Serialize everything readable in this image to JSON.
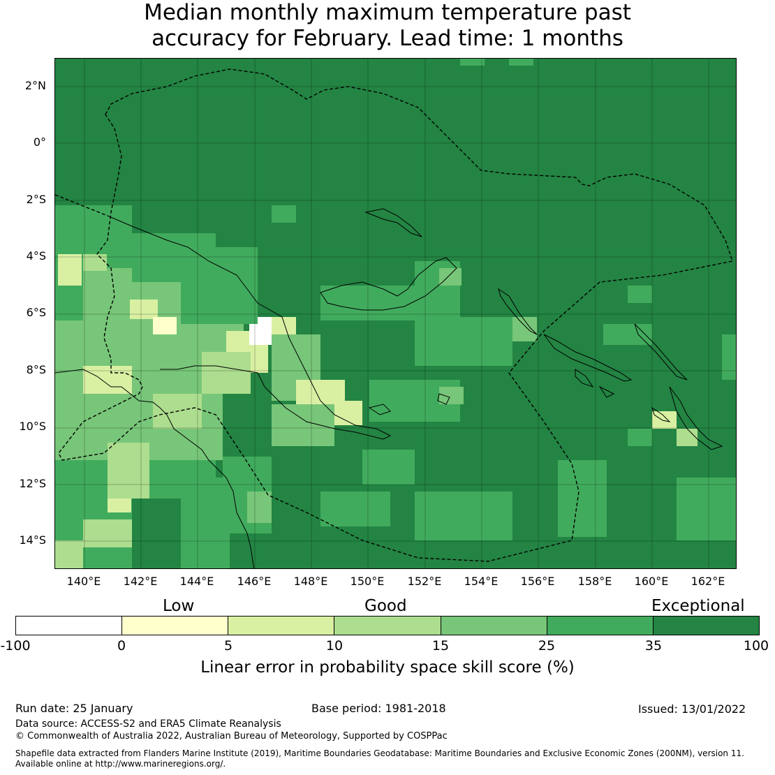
{
  "title_line1": "Median monthly maximum temperature past",
  "title_line2": "accuracy for February. Lead time: 1 months",
  "lat_labels": [
    "2°N",
    "0°",
    "2°S",
    "4°S",
    "6°S",
    "8°S",
    "10°S",
    "12°S",
    "14°S"
  ],
  "lon_labels": [
    "140°E",
    "142°E",
    "144°E",
    "146°E",
    "148°E",
    "150°E",
    "152°E",
    "154°E",
    "156°E",
    "158°E",
    "160°E",
    "162°E"
  ],
  "categories": {
    "low": "Low",
    "good": "Good",
    "exceptional": "Exceptional"
  },
  "colorbar": {
    "ticks": [
      "-100",
      "0",
      "5",
      "10",
      "15",
      "25",
      "35",
      "100"
    ],
    "colors": [
      "#ffffff",
      "#ffffcc",
      "#d9f0a3",
      "#addd8e",
      "#78c679",
      "#41ab5d",
      "#238443"
    ],
    "label": "Linear error in probability space skill score (%)"
  },
  "footer": {
    "run_date": "Run date: 25 January",
    "base_period": "Base period: 1981-2018",
    "issued": "Issued: 13/01/2022",
    "data_source": "Data source: ACCESS-S2 and ERA5 Climate Reanalysis",
    "copyright": "© Commonwealth of Australia 2022, Australian Bureau of Meteorology, Supported by COSPPac",
    "shapefile_line1": "Shapefile data extracted from Flanders Marine Institute (2019), Maritime Boundaries Geodatabase: Maritime Boundaries and Exclusive Economic Zones (200NM), version 11.",
    "shapefile_line2": "Available online at http://www.marineregions.org/."
  }
}
